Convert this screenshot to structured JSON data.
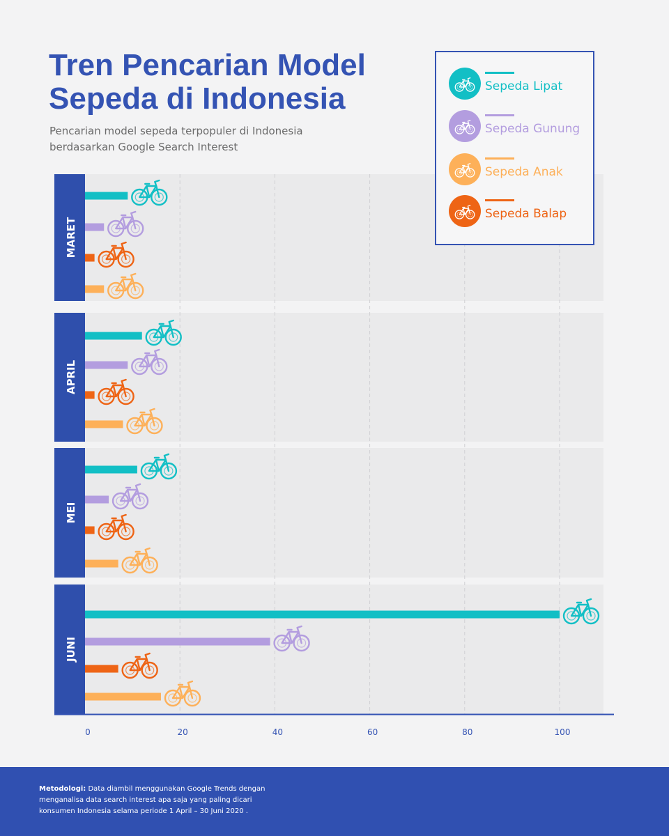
{
  "title": "Tren Pencarian Model Sepeda di Indonesia",
  "subtitle": "Pencarian model sepeda terpopuler di Indonesia berdasarkan Google Search Interest",
  "legend": [
    {
      "label": "Sepeda Lipat",
      "color": "#12bfc5",
      "icon": "folding-bike-icon"
    },
    {
      "label": "Sepeda Gunung",
      "color": "#b39ddf",
      "icon": "mountain-bike-icon"
    },
    {
      "label": "Sepeda Anak",
      "color": "#fdb059",
      "icon": "kids-bike-icon"
    },
    {
      "label": "Sepeda Balap",
      "color": "#ee6415",
      "icon": "road-bike-icon"
    }
  ],
  "footer": {
    "label": "Metodologi:",
    "text": "Data diambil menggunakan Google Trends dengan menganalisa data search interest apa saja yang paling dicari konsumen Indonesia selama periode 1 April – 30 Juni 2020 ."
  },
  "chart_data": {
    "type": "bar",
    "orientation": "horizontal",
    "categories": [
      "MARET",
      "APRIL",
      "MEI",
      "JUNI"
    ],
    "series": [
      {
        "name": "Sepeda Lipat",
        "color": "#12bfc5",
        "values": [
          9,
          12,
          11,
          100
        ]
      },
      {
        "name": "Sepeda Gunung",
        "color": "#b39ddf",
        "values": [
          4,
          9,
          5,
          39
        ]
      },
      {
        "name": "Sepeda Balap",
        "color": "#ee6415",
        "values": [
          2,
          2,
          2,
          7
        ]
      },
      {
        "name": "Sepeda Anak",
        "color": "#fdb059",
        "values": [
          4,
          8,
          7,
          16
        ]
      }
    ],
    "x_ticks": [
      0,
      20,
      40,
      60,
      80,
      100
    ],
    "xlim": [
      0,
      112
    ],
    "grid": true,
    "legend_position": "top-right"
  }
}
